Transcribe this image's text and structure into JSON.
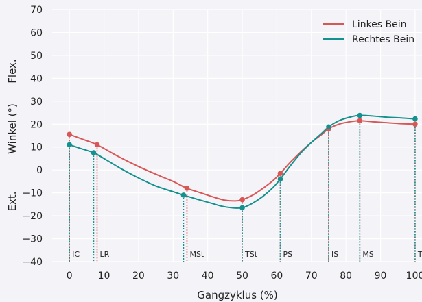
{
  "chart_data": {
    "type": "line",
    "xlabel": "Gangzyklus (%)",
    "ylabel": "Winkel (°)",
    "ylabel_top": "Flex.",
    "ylabel_bottom": "Ext.",
    "xlim": [
      -5,
      102
    ],
    "ylim": [
      -40,
      70
    ],
    "xticks": [
      0,
      10,
      20,
      30,
      40,
      50,
      60,
      70,
      80,
      90,
      100
    ],
    "yticks": [
      -40,
      -30,
      -20,
      -10,
      0,
      10,
      20,
      30,
      40,
      50,
      60,
      70
    ],
    "ytick_labels": [
      "−40",
      "−30",
      "−20",
      "−10",
      "0",
      "10",
      "20",
      "30",
      "40",
      "50",
      "60",
      "70"
    ],
    "grid": true,
    "legend_position": "top-right",
    "colors": {
      "left": "#d95656",
      "right": "#14908f"
    },
    "series": [
      {
        "name": "Linkes Bein",
        "color": "#d95656",
        "curve": [
          [
            0,
            15.5
          ],
          [
            4,
            13.3
          ],
          [
            8,
            11.0
          ],
          [
            14,
            6.0
          ],
          [
            20,
            1.5
          ],
          [
            26,
            -2.5
          ],
          [
            30,
            -5.0
          ],
          [
            34,
            -8.0
          ],
          [
            38,
            -10.0
          ],
          [
            42,
            -12.0
          ],
          [
            45,
            -13.2
          ],
          [
            48,
            -13.5
          ],
          [
            50,
            -13.0
          ],
          [
            53,
            -11.0
          ],
          [
            56,
            -8.0
          ],
          [
            59,
            -4.5
          ],
          [
            61,
            -1.5
          ],
          [
            64,
            3.5
          ],
          [
            67,
            8.0
          ],
          [
            70,
            12.0
          ],
          [
            73,
            15.5
          ],
          [
            75,
            18.0
          ],
          [
            78,
            20.0
          ],
          [
            81,
            21.0
          ],
          [
            84,
            21.5
          ],
          [
            88,
            21.0
          ],
          [
            92,
            20.6
          ],
          [
            96,
            20.2
          ],
          [
            100,
            20.0
          ]
        ],
        "markers": [
          {
            "x": 0,
            "y": 15.5
          },
          {
            "x": 8,
            "y": 11.0
          },
          {
            "x": 34,
            "y": -8.0
          },
          {
            "x": 50,
            "y": -13.0
          },
          {
            "x": 61,
            "y": -1.5
          },
          {
            "x": 75,
            "y": 18.0
          },
          {
            "x": 84,
            "y": 21.5
          },
          {
            "x": 100,
            "y": 20.0
          }
        ]
      },
      {
        "name": "Rechtes Bein",
        "color": "#14908f",
        "curve": [
          [
            0,
            11.0
          ],
          [
            3,
            9.5
          ],
          [
            7,
            7.5
          ],
          [
            10,
            5.0
          ],
          [
            15,
            0.5
          ],
          [
            20,
            -3.5
          ],
          [
            25,
            -7.0
          ],
          [
            30,
            -9.5
          ],
          [
            33,
            -11.0
          ],
          [
            37,
            -12.8
          ],
          [
            41,
            -14.5
          ],
          [
            44,
            -15.8
          ],
          [
            47,
            -16.5
          ],
          [
            50,
            -16.5
          ],
          [
            53,
            -14.5
          ],
          [
            56,
            -11.5
          ],
          [
            59,
            -7.5
          ],
          [
            61,
            -4.0
          ],
          [
            64,
            2.0
          ],
          [
            67,
            7.5
          ],
          [
            70,
            12.0
          ],
          [
            73,
            16.0
          ],
          [
            75,
            18.8
          ],
          [
            78,
            21.5
          ],
          [
            81,
            23.0
          ],
          [
            84,
            23.8
          ],
          [
            88,
            23.5
          ],
          [
            92,
            23.0
          ],
          [
            96,
            22.7
          ],
          [
            100,
            22.3
          ]
        ],
        "markers": [
          {
            "x": 0,
            "y": 11.0
          },
          {
            "x": 7,
            "y": 7.5
          },
          {
            "x": 33,
            "y": -11.0
          },
          {
            "x": 50,
            "y": -16.5
          },
          {
            "x": 61,
            "y": -4.0
          },
          {
            "x": 75,
            "y": 18.8
          },
          {
            "x": 84,
            "y": 23.8
          },
          {
            "x": 100,
            "y": 22.3
          }
        ]
      }
    ],
    "phases": [
      {
        "label": "IC",
        "x_left": 0,
        "x_right": 0
      },
      {
        "label": "LR",
        "x_left": 8,
        "x_right": 7
      },
      {
        "label": "MSt",
        "x_left": 34,
        "x_right": 33
      },
      {
        "label": "TSt",
        "x_left": 50,
        "x_right": 50
      },
      {
        "label": "PS",
        "x_left": 61,
        "x_right": 61
      },
      {
        "label": "IS",
        "x_left": 75,
        "x_right": 75
      },
      {
        "label": "MS",
        "x_left": 84,
        "x_right": 84
      },
      {
        "label": "TS",
        "x_left": 100,
        "x_right": 100
      }
    ]
  }
}
